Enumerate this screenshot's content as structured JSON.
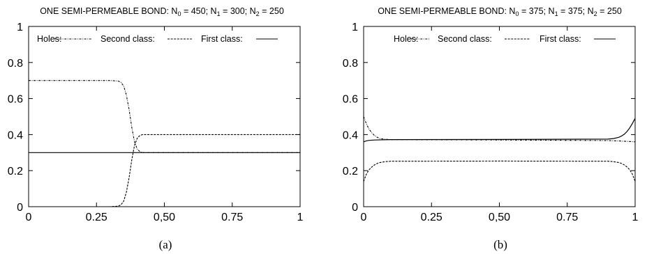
{
  "chart_data": [
    {
      "type": "line",
      "panel_label": "(a)",
      "title_parts": {
        "prefix": "ONE SEMI-PERMEABLE BOND:  N",
        "sub0": "0",
        "mid0": " = 450; N",
        "sub1": "1",
        "mid1": " = 300; N",
        "sub2": "2",
        "tail": " = 250"
      },
      "xlim": [
        0,
        1
      ],
      "ylim": [
        0,
        1
      ],
      "grid": false,
      "legend_placement": "top",
      "xticks": [
        {
          "value": 0,
          "label": "0"
        },
        {
          "value": 0.25,
          "label": "0.25"
        },
        {
          "value": 0.5,
          "label": "0,50"
        },
        {
          "value": 0.75,
          "label": "0.75"
        },
        {
          "value": 1,
          "label": "1"
        }
      ],
      "yticks": [
        {
          "value": 0,
          "label": "0"
        },
        {
          "value": 0.2,
          "label": "0.2"
        },
        {
          "value": 0.4,
          "label": "0.4"
        },
        {
          "value": 0.6,
          "label": "0.6"
        },
        {
          "value": 0.8,
          "label": "0.8"
        },
        {
          "value": 1,
          "label": "1"
        }
      ],
      "series": [
        {
          "name": "Holes:",
          "dash": "dash-dot",
          "x": [
            0,
            0.1,
            0.2,
            0.3,
            0.33,
            0.34,
            0.35,
            0.36,
            0.37,
            0.38,
            0.39,
            0.4,
            0.41,
            0.42,
            0.5,
            0.75,
            1
          ],
          "y": [
            0.7,
            0.7,
            0.7,
            0.7,
            0.697,
            0.69,
            0.67,
            0.62,
            0.54,
            0.44,
            0.36,
            0.32,
            0.305,
            0.3,
            0.3,
            0.3,
            0.3
          ]
        },
        {
          "name": "Second class:",
          "dash": "dashed",
          "x": [
            0,
            0.1,
            0.2,
            0.3,
            0.33,
            0.34,
            0.35,
            0.36,
            0.37,
            0.38,
            0.39,
            0.4,
            0.41,
            0.42,
            0.5,
            0.75,
            1
          ],
          "y": [
            0,
            0,
            0,
            0,
            0.003,
            0.01,
            0.03,
            0.08,
            0.16,
            0.26,
            0.34,
            0.38,
            0.395,
            0.4,
            0.4,
            0.4,
            0.4
          ]
        },
        {
          "name": "First class:",
          "dash": "solid",
          "x": [
            0,
            0.25,
            0.5,
            0.75,
            1
          ],
          "y": [
            0.3,
            0.3,
            0.3,
            0.3,
            0.3
          ]
        }
      ]
    },
    {
      "type": "line",
      "panel_label": "(b)",
      "title_parts": {
        "prefix": "ONE SEMI-PERMEABLE BOND:  N",
        "sub0": "0",
        "mid0": " = 375; N",
        "sub1": "1",
        "mid1": " = 375; N",
        "sub2": "2",
        "tail": " = 250"
      },
      "xlim": [
        0,
        1
      ],
      "ylim": [
        0,
        1
      ],
      "grid": false,
      "legend_placement": "top",
      "xticks": [
        {
          "value": 0,
          "label": "0"
        },
        {
          "value": 0.25,
          "label": "0.25"
        },
        {
          "value": 0.5,
          "label": "0,50"
        },
        {
          "value": 0.75,
          "label": "0.75"
        },
        {
          "value": 1,
          "label": "1"
        }
      ],
      "yticks": [
        {
          "value": 0,
          "label": "0"
        },
        {
          "value": 0.2,
          "label": "0.2"
        },
        {
          "value": 0.4,
          "label": "0.4"
        },
        {
          "value": 0.6,
          "label": "0.6"
        },
        {
          "value": 0.8,
          "label": "0.8"
        },
        {
          "value": 1,
          "label": "1"
        }
      ],
      "series": [
        {
          "name": "Holes:",
          "dash": "dash-dot",
          "x": [
            0,
            0.01,
            0.02,
            0.03,
            0.04,
            0.05,
            0.06,
            0.08,
            0.1,
            0.5,
            0.9,
            0.95,
            1
          ],
          "y": [
            0.5,
            0.46,
            0.43,
            0.41,
            0.395,
            0.385,
            0.378,
            0.374,
            0.372,
            0.37,
            0.367,
            0.364,
            0.36
          ]
        },
        {
          "name": "Second class:",
          "dash": "dashed",
          "x": [
            0,
            0.01,
            0.02,
            0.03,
            0.04,
            0.05,
            0.06,
            0.08,
            0.1,
            0.5,
            0.9,
            0.92,
            0.94,
            0.95,
            0.96,
            0.97,
            0.98,
            0.99,
            1
          ],
          "y": [
            0.14,
            0.18,
            0.205,
            0.22,
            0.232,
            0.24,
            0.245,
            0.25,
            0.252,
            0.253,
            0.252,
            0.25,
            0.245,
            0.24,
            0.232,
            0.22,
            0.205,
            0.18,
            0.14
          ]
        },
        {
          "name": "First class:",
          "dash": "solid",
          "x": [
            0,
            0.01,
            0.02,
            0.04,
            0.1,
            0.5,
            0.9,
            0.92,
            0.94,
            0.95,
            0.96,
            0.97,
            0.98,
            0.99,
            1
          ],
          "y": [
            0.36,
            0.365,
            0.368,
            0.37,
            0.372,
            0.373,
            0.375,
            0.378,
            0.385,
            0.392,
            0.402,
            0.417,
            0.437,
            0.462,
            0.49
          ]
        }
      ]
    }
  ]
}
